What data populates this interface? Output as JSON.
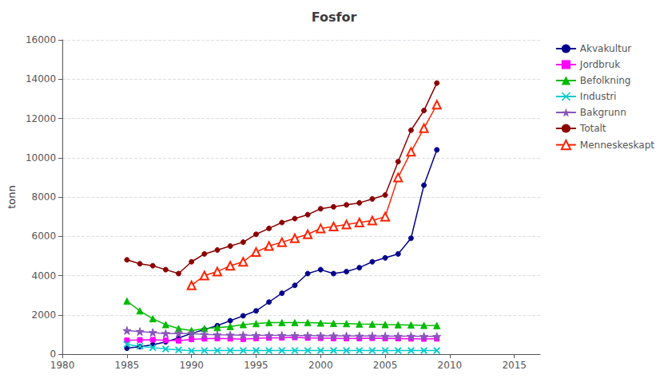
{
  "chart_data": {
    "type": "line",
    "title": "Fosfor",
    "ylabel": "tonn",
    "xlim": [
      1980,
      2017
    ],
    "ylim": [
      0,
      16000
    ],
    "xticks": [
      1980,
      1985,
      1990,
      1995,
      2000,
      2005,
      2010,
      2015
    ],
    "yticks": [
      0,
      2000,
      4000,
      6000,
      8000,
      10000,
      12000,
      14000,
      16000
    ],
    "grid": true,
    "legend": "right",
    "series": [
      {
        "name": "Akvakultur",
        "color": "#00008B",
        "marker": "circle",
        "x": [
          1985,
          1986,
          1987,
          1988,
          1989,
          1990,
          1991,
          1992,
          1993,
          1994,
          1995,
          1996,
          1997,
          1998,
          1999,
          2000,
          2001,
          2002,
          2003,
          2004,
          2005,
          2006,
          2007,
          2008,
          2009
        ],
        "values": [
          300,
          380,
          480,
          620,
          820,
          1050,
          1250,
          1450,
          1700,
          1950,
          2200,
          2650,
          3100,
          3500,
          4100,
          4300,
          4100,
          4200,
          4400,
          4700,
          4900,
          5100,
          5900,
          8600,
          10400
        ]
      },
      {
        "name": "Jordbruk",
        "color": "#FF00FF",
        "marker": "square",
        "x": [
          1985,
          1986,
          1987,
          1988,
          1989,
          1990,
          1991,
          1992,
          1993,
          1994,
          1995,
          1996,
          1997,
          1998,
          1999,
          2000,
          2001,
          2002,
          2003,
          2004,
          2005,
          2006,
          2007,
          2008,
          2009
        ],
        "values": [
          700,
          720,
          730,
          700,
          680,
          750,
          780,
          800,
          780,
          760,
          800,
          820,
          830,
          850,
          820,
          810,
          800,
          790,
          800,
          810,
          800,
          790,
          780,
          770,
          780
        ]
      },
      {
        "name": "Befolkning",
        "color": "#00BB00",
        "marker": "triangle",
        "x": [
          1985,
          1986,
          1987,
          1988,
          1989,
          1990,
          1991,
          1992,
          1993,
          1994,
          1995,
          1996,
          1997,
          1998,
          1999,
          2000,
          2001,
          2002,
          2003,
          2004,
          2005,
          2006,
          2007,
          2008,
          2009
        ],
        "values": [
          2700,
          2200,
          1800,
          1500,
          1300,
          1200,
          1300,
          1350,
          1400,
          1500,
          1550,
          1600,
          1600,
          1600,
          1600,
          1580,
          1560,
          1550,
          1530,
          1520,
          1500,
          1490,
          1480,
          1460,
          1450
        ]
      },
      {
        "name": "Industri",
        "color": "#00CCCC",
        "marker": "x",
        "x": [
          1985,
          1986,
          1987,
          1988,
          1989,
          1990,
          1991,
          1992,
          1993,
          1994,
          1995,
          1996,
          1997,
          1998,
          1999,
          2000,
          2001,
          2002,
          2003,
          2004,
          2005,
          2006,
          2007,
          2008,
          2009
        ],
        "values": [
          500,
          400,
          330,
          260,
          210,
          170,
          180,
          180,
          180,
          180,
          180,
          180,
          180,
          180,
          180,
          180,
          180,
          180,
          180,
          180,
          180,
          180,
          180,
          180,
          180
        ]
      },
      {
        "name": "Bakgrunn",
        "color": "#8855BB",
        "marker": "star",
        "x": [
          1985,
          1986,
          1987,
          1988,
          1989,
          1990,
          1991,
          1992,
          1993,
          1994,
          1995,
          1996,
          1997,
          1998,
          1999,
          2000,
          2001,
          2002,
          2003,
          2004,
          2005,
          2006,
          2007,
          2008,
          2009
        ],
        "values": [
          1200,
          1150,
          1100,
          1050,
          1050,
          1050,
          1000,
          980,
          970,
          960,
          950,
          950,
          950,
          940,
          940,
          930,
          930,
          920,
          920,
          920,
          910,
          910,
          910,
          900,
          900
        ]
      },
      {
        "name": "Totalt",
        "color": "#8B0000",
        "marker": "circle",
        "x": [
          1985,
          1986,
          1987,
          1988,
          1989,
          1990,
          1991,
          1992,
          1993,
          1994,
          1995,
          1996,
          1997,
          1998,
          1999,
          2000,
          2001,
          2002,
          2003,
          2004,
          2005,
          2006,
          2007,
          2008,
          2009
        ],
        "values": [
          4800,
          4600,
          4500,
          4300,
          4100,
          4700,
          5100,
          5300,
          5500,
          5700,
          6100,
          6400,
          6700,
          6900,
          7100,
          7400,
          7500,
          7600,
          7700,
          7900,
          8100,
          9800,
          11400,
          12400,
          13800
        ]
      },
      {
        "name": "Menneskeskapt",
        "color": "#FF2200",
        "marker": "open_triangle",
        "x": [
          1990,
          1991,
          1992,
          1993,
          1994,
          1995,
          1996,
          1997,
          1998,
          1999,
          2000,
          2001,
          2002,
          2003,
          2004,
          2005,
          2006,
          2007,
          2008,
          2009
        ],
        "values": [
          3500,
          4000,
          4200,
          4500,
          4700,
          5200,
          5500,
          5700,
          5900,
          6100,
          6400,
          6500,
          6600,
          6700,
          6800,
          7000,
          9000,
          10300,
          11500,
          12700
        ]
      }
    ]
  }
}
